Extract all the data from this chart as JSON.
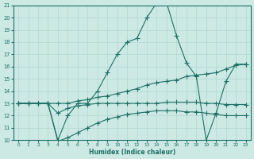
{
  "xlabel": "Humidex (Indice chaleur)",
  "xlim": [
    -0.5,
    23.5
  ],
  "ylim": [
    10,
    21
  ],
  "yticks": [
    10,
    11,
    12,
    13,
    14,
    15,
    16,
    17,
    18,
    19,
    20,
    21
  ],
  "xticks": [
    0,
    1,
    2,
    3,
    4,
    5,
    6,
    7,
    8,
    9,
    10,
    11,
    12,
    13,
    14,
    15,
    16,
    17,
    18,
    19,
    20,
    21,
    22,
    23
  ],
  "bg_color": "#cce9e4",
  "line_color": "#1e7065",
  "grid_color": "#b0d8d0",
  "series": [
    {
      "x": [
        0,
        1,
        2,
        3,
        4,
        5,
        6,
        7,
        8,
        9,
        10,
        11,
        12,
        13,
        14,
        15,
        16,
        17,
        18,
        19,
        20,
        21,
        22,
        23
      ],
      "y": [
        13,
        13,
        13,
        13,
        10,
        12,
        13,
        13,
        14,
        15.5,
        17,
        18,
        18.3,
        20,
        21.2,
        21.2,
        18.5,
        16.3,
        15.2,
        10,
        12.2,
        14.8,
        16.2,
        16.2
      ]
    },
    {
      "x": [
        0,
        1,
        2,
        3,
        4,
        5,
        6,
        7,
        8,
        9,
        10,
        11,
        12,
        13,
        14,
        15,
        16,
        17,
        18,
        19,
        20,
        21,
        22,
        23
      ],
      "y": [
        13,
        13,
        13,
        13,
        13,
        13,
        13.2,
        13.3,
        13.5,
        13.6,
        13.8,
        14.0,
        14.2,
        14.5,
        14.7,
        14.8,
        14.9,
        15.2,
        15.3,
        15.4,
        15.5,
        15.8,
        16.1,
        16.2
      ]
    },
    {
      "x": [
        0,
        1,
        2,
        3,
        4,
        5,
        6,
        7,
        8,
        9,
        10,
        11,
        12,
        13,
        14,
        15,
        16,
        17,
        18,
        19,
        20,
        21,
        22,
        23
      ],
      "y": [
        13,
        13,
        13,
        13,
        9.9,
        10.2,
        10.6,
        11.0,
        11.4,
        11.7,
        11.9,
        12.1,
        12.2,
        12.3,
        12.4,
        12.4,
        12.4,
        12.3,
        12.3,
        12.2,
        12.1,
        12.0,
        12.0,
        12.0
      ]
    },
    {
      "x": [
        0,
        1,
        2,
        3,
        4,
        5,
        6,
        7,
        8,
        9,
        10,
        11,
        12,
        13,
        14,
        15,
        16,
        17,
        18,
        19,
        20,
        21,
        22,
        23
      ],
      "y": [
        13,
        13,
        13,
        13,
        12.2,
        12.6,
        12.8,
        12.9,
        13.0,
        13.0,
        13.0,
        13.0,
        13.0,
        13.0,
        13.0,
        13.1,
        13.1,
        13.1,
        13.1,
        13.0,
        13.0,
        12.9,
        12.9,
        12.9
      ]
    }
  ]
}
